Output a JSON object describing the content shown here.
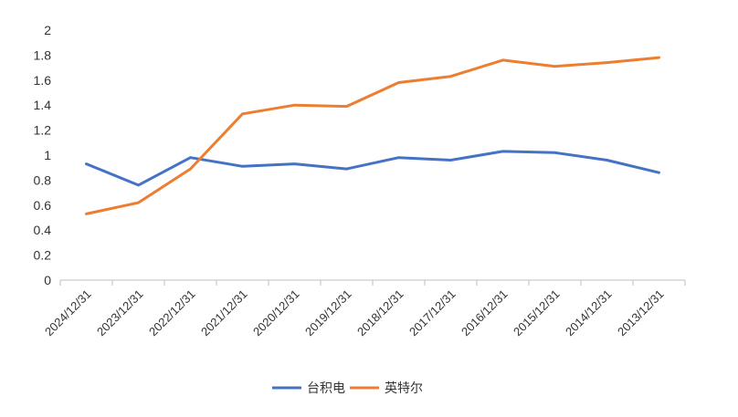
{
  "chart_data": {
    "type": "line",
    "title": "",
    "xlabel": "",
    "ylabel": "",
    "ylim": [
      0,
      2
    ],
    "y_ticks": [
      "0",
      "0.2",
      "0.4",
      "0.6",
      "0.8",
      "1",
      "1.2",
      "1.4",
      "1.6",
      "1.8",
      "2"
    ],
    "grid": false,
    "legend_position": "bottom",
    "categories": [
      "2024/12/31",
      "2023/12/31",
      "2022/12/31",
      "2021/12/31",
      "2020/12/31",
      "2019/12/31",
      "2018/12/31",
      "2017/12/31",
      "2016/12/31",
      "2015/12/31",
      "2014/12/31",
      "2013/12/31"
    ],
    "series": [
      {
        "name": "台积电",
        "color": "#4472c4",
        "values": [
          0.93,
          0.76,
          0.98,
          0.91,
          0.93,
          0.89,
          0.98,
          0.96,
          1.03,
          1.02,
          0.96,
          0.86
        ]
      },
      {
        "name": "英特尔",
        "color": "#ed7d31",
        "values": [
          0.53,
          0.62,
          0.89,
          1.33,
          1.4,
          1.39,
          1.58,
          1.63,
          1.76,
          1.71,
          1.74,
          1.78
        ]
      }
    ]
  }
}
